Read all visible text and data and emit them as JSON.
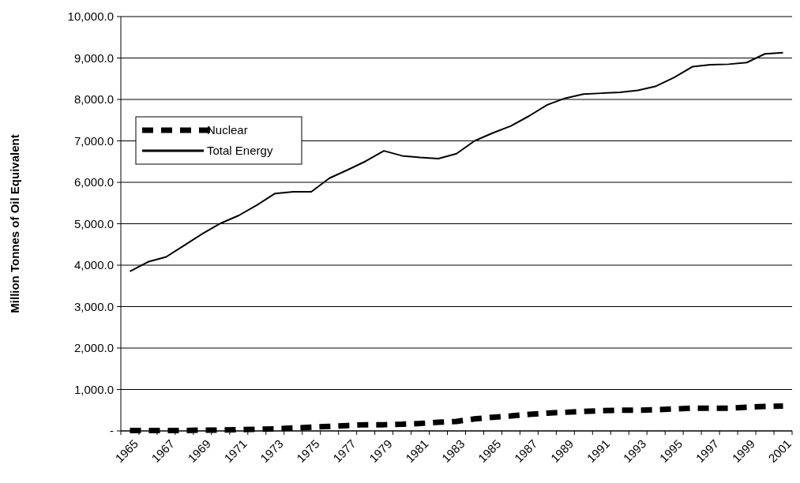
{
  "chart_data": {
    "type": "line",
    "ylabel": "Million Tonnes of Oil Equivalent",
    "categories": [
      "1965",
      null,
      "1967",
      null,
      "1969",
      null,
      "1971",
      null,
      "1973",
      null,
      "1975",
      null,
      "1977",
      null,
      "1979",
      null,
      "1981",
      null,
      "1983",
      null,
      "1985",
      null,
      "1987",
      null,
      "1989",
      null,
      "1991",
      null,
      "1993",
      null,
      "1995",
      null,
      "1997",
      null,
      "1999",
      null,
      "2001"
    ],
    "series": [
      {
        "name": "Nuclear",
        "color": "#000000",
        "line_style": "dashed",
        "values": [
          10,
          10,
          10,
          10,
          20,
          20,
          30,
          40,
          50,
          70,
          90,
          110,
          130,
          150,
          150,
          160,
          180,
          210,
          230,
          290,
          330,
          360,
          400,
          430,
          450,
          470,
          490,
          500,
          500,
          510,
          530,
          550,
          550,
          550,
          570,
          590,
          600
        ]
      },
      {
        "name": "Total Energy",
        "color": "#000000",
        "line_style": "solid",
        "values": [
          3850,
          4080,
          4200,
          4480,
          4760,
          5010,
          5200,
          5450,
          5730,
          5770,
          5770,
          6100,
          6300,
          6510,
          6760,
          6640,
          6600,
          6570,
          6690,
          7000,
          7190,
          7360,
          7600,
          7870,
          8030,
          8130,
          8150,
          8170,
          8220,
          8320,
          8530,
          8790,
          8840,
          8850,
          8890,
          9100,
          9130
        ]
      }
    ],
    "ylim": [
      0,
      10000
    ],
    "yticks": [
      {
        "value": 0,
        "label": "-"
      },
      {
        "value": 1000,
        "label": "1,000.0"
      },
      {
        "value": 2000,
        "label": "2,000.0"
      },
      {
        "value": 3000,
        "label": "3,000.0"
      },
      {
        "value": 4000,
        "label": "4,000.0"
      },
      {
        "value": 5000,
        "label": "5,000.0"
      },
      {
        "value": 6000,
        "label": "6,000.0"
      },
      {
        "value": 7000,
        "label": "7,000.0"
      },
      {
        "value": 8000,
        "label": "8,000.0"
      },
      {
        "value": 9000,
        "label": "9,000.0"
      },
      {
        "value": 10000,
        "label": "10,000.0"
      }
    ],
    "grid": "y",
    "legend": "left",
    "marker": "none"
  }
}
